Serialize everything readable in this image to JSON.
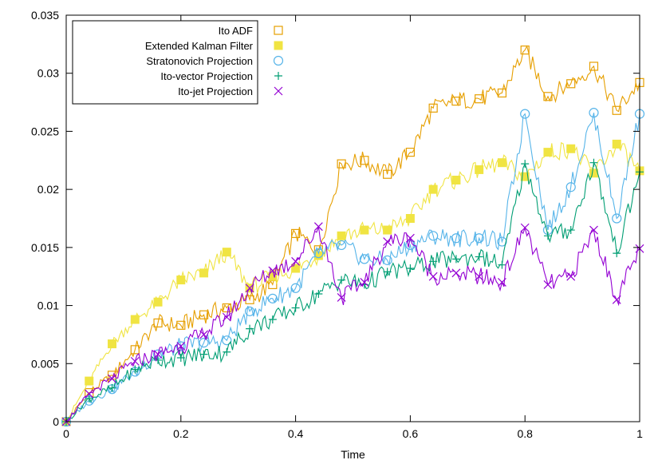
{
  "chart_data": {
    "type": "line",
    "title": "",
    "xlabel": "Time",
    "ylabel": "",
    "xlim": [
      0,
      1
    ],
    "ylim": [
      0,
      0.035
    ],
    "xticks": [
      0,
      0.2,
      0.4,
      0.6,
      0.8,
      1
    ],
    "xtick_labels": [
      "0",
      "0.2",
      "0.4",
      "0.6",
      "0.8",
      "1"
    ],
    "yticks": [
      0,
      0.005,
      0.01,
      0.015,
      0.02,
      0.025,
      0.03,
      0.035
    ],
    "ytick_labels": [
      "0",
      "0.005",
      "0.01",
      "0.015",
      "0.02",
      "0.025",
      "0.03",
      "0.035"
    ],
    "grid": false,
    "legend_position": "top-left",
    "series": [
      {
        "name": "Ito ADF",
        "color": "#e69f00",
        "marker": "open-square",
        "x": [
          0,
          0.04,
          0.08,
          0.12,
          0.16,
          0.2,
          0.24,
          0.28,
          0.32,
          0.36,
          0.4,
          0.44,
          0.48,
          0.52,
          0.56,
          0.6,
          0.64,
          0.68,
          0.72,
          0.76,
          0.8,
          0.84,
          0.88,
          0.92,
          0.96,
          1.0
        ],
        "values": [
          0,
          0.0025,
          0.004,
          0.0062,
          0.0085,
          0.0083,
          0.0092,
          0.0098,
          0.0105,
          0.0118,
          0.0162,
          0.0148,
          0.0222,
          0.0225,
          0.0213,
          0.0232,
          0.027,
          0.0276,
          0.0278,
          0.0283,
          0.032,
          0.028,
          0.0291,
          0.0306,
          0.0268,
          0.0292
        ]
      },
      {
        "name": "Extended Kalman Filter",
        "color": "#f0e442",
        "marker": "filled-square",
        "x": [
          0,
          0.04,
          0.08,
          0.12,
          0.16,
          0.2,
          0.24,
          0.28,
          0.32,
          0.36,
          0.4,
          0.44,
          0.48,
          0.52,
          0.56,
          0.6,
          0.64,
          0.68,
          0.72,
          0.76,
          0.8,
          0.84,
          0.88,
          0.92,
          0.96,
          1.0
        ],
        "values": [
          0,
          0.0035,
          0.0067,
          0.0088,
          0.0103,
          0.0122,
          0.0128,
          0.0146,
          0.0115,
          0.0125,
          0.0132,
          0.0143,
          0.016,
          0.0165,
          0.0165,
          0.0175,
          0.02,
          0.0208,
          0.0217,
          0.0223,
          0.0211,
          0.0232,
          0.0235,
          0.0214,
          0.0239,
          0.0216
        ]
      },
      {
        "name": "Stratonovich Projection",
        "color": "#56b4e9",
        "marker": "open-circle",
        "x": [
          0,
          0.04,
          0.08,
          0.12,
          0.16,
          0.2,
          0.24,
          0.28,
          0.32,
          0.36,
          0.4,
          0.44,
          0.48,
          0.52,
          0.56,
          0.6,
          0.64,
          0.68,
          0.72,
          0.76,
          0.8,
          0.84,
          0.88,
          0.92,
          0.96,
          1.0
        ],
        "values": [
          0,
          0.0018,
          0.0028,
          0.0043,
          0.0058,
          0.0065,
          0.0068,
          0.007,
          0.0095,
          0.0106,
          0.0115,
          0.0145,
          0.0152,
          0.014,
          0.0139,
          0.0152,
          0.016,
          0.0158,
          0.0158,
          0.0155,
          0.0265,
          0.0165,
          0.0202,
          0.0266,
          0.0175,
          0.0265
        ]
      },
      {
        "name": "Ito-vector Projection",
        "color": "#009e73",
        "marker": "plus",
        "x": [
          0,
          0.04,
          0.08,
          0.12,
          0.16,
          0.2,
          0.24,
          0.28,
          0.32,
          0.36,
          0.4,
          0.44,
          0.48,
          0.52,
          0.56,
          0.6,
          0.64,
          0.68,
          0.72,
          0.76,
          0.8,
          0.84,
          0.88,
          0.92,
          0.96,
          1.0
        ],
        "values": [
          0,
          0.002,
          0.0029,
          0.0045,
          0.0053,
          0.0055,
          0.0058,
          0.006,
          0.008,
          0.0088,
          0.0098,
          0.011,
          0.0122,
          0.0118,
          0.0129,
          0.0132,
          0.0138,
          0.014,
          0.0142,
          0.0135,
          0.0222,
          0.016,
          0.0165,
          0.0223,
          0.0145,
          0.0215
        ]
      },
      {
        "name": "Ito-jet Projection",
        "color": "#9400d3",
        "marker": "cross",
        "x": [
          0,
          0.04,
          0.08,
          0.12,
          0.16,
          0.2,
          0.24,
          0.28,
          0.32,
          0.36,
          0.4,
          0.44,
          0.48,
          0.52,
          0.56,
          0.6,
          0.64,
          0.68,
          0.72,
          0.76,
          0.8,
          0.84,
          0.88,
          0.92,
          0.96,
          1.0
        ],
        "values": [
          0,
          0.0024,
          0.0037,
          0.0052,
          0.0058,
          0.0065,
          0.0075,
          0.009,
          0.0115,
          0.013,
          0.0138,
          0.0168,
          0.0107,
          0.012,
          0.0155,
          0.0158,
          0.0125,
          0.0128,
          0.0125,
          0.012,
          0.0167,
          0.0118,
          0.0125,
          0.0165,
          0.0105,
          0.0149
        ]
      }
    ]
  }
}
